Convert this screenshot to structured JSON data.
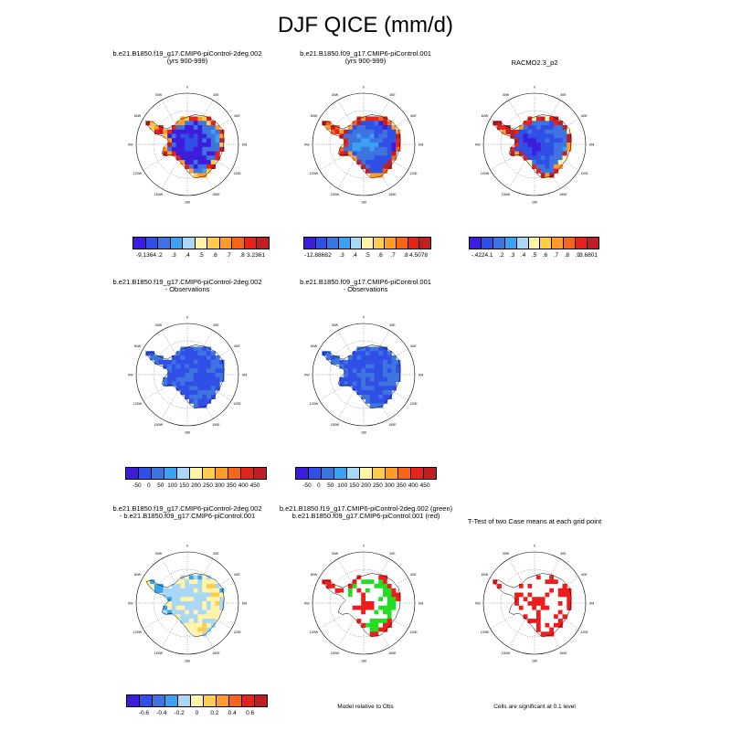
{
  "page": {
    "title": "DJF QICE (mm/d)"
  },
  "palettes": {
    "model": [
      "#3d1ddb",
      "#2f4fe6",
      "#3d74e0",
      "#3aa2f0",
      "#a8d8f6",
      "#fff4a8",
      "#ffcc4d",
      "#ff9b26",
      "#f7651a",
      "#e3241c",
      "#c11d24"
    ],
    "diff": [
      "#3d1ddb",
      "#2f4fe6",
      "#3d74e0",
      "#3aa2f0",
      "#a8d8f6",
      "#fff4a8",
      "#ffcc4d",
      "#ff9b26",
      "#f7651a",
      "#e3241c",
      "#c11d24"
    ]
  },
  "map": {
    "lon_labels": [
      "0",
      "30E",
      "60E",
      "90E",
      "120E",
      "150E",
      "180",
      "150W",
      "120W",
      "90W",
      "60W",
      "30W"
    ]
  },
  "panels": [
    {
      "id": "p1",
      "title_line1": "b.e21.B1850.f19_g17.CMIP6-piControl-2deg.002",
      "title_line2": "(yrs 900-999)",
      "fill_colors": [
        "#2f4fe6",
        "#3d1ddb",
        "#3d74e0",
        "#3aa2f0"
      ],
      "edge_colors": [
        "#e3241c",
        "#ff9b26",
        "#ffcc4d",
        "#c11d24"
      ],
      "ticks": [
        "-9.1364",
        ".2",
        ".3",
        ".4",
        ".5",
        ".6",
        ".7",
        ".8",
        "3.2361"
      ]
    },
    {
      "id": "p2",
      "title_line1": "b.e21.B1850.f09_g17.CMIP6-piControl.001",
      "title_line2": "(yrs 900-999)",
      "fill_colors": [
        "#3aa2f0",
        "#3d74e0",
        "#2f4fe6",
        "#3d1ddb"
      ],
      "edge_colors": [
        "#e3241c",
        "#f7651a",
        "#c11d24",
        "#ff9b26"
      ],
      "ticks": [
        "-12.8868",
        ".2",
        ".3",
        ".4",
        ".5",
        ".6",
        ".7",
        ".8",
        "4.5078"
      ]
    },
    {
      "id": "p3",
      "title_line1": "RACMO2.3_p2",
      "title_line2": "",
      "fill_colors": [
        "#3d1ddb",
        "#2f4fe6",
        "#3d74e0",
        "#3aa2f0"
      ],
      "edge_colors": [
        "#c11d24",
        "#e3241c",
        "#ff9b26",
        "#fff4a8"
      ],
      "ticks": [
        "-.4224",
        ".1",
        ".2",
        ".3",
        ".4",
        ".5",
        ".6",
        ".7",
        ".8",
        ".9",
        "3.6801"
      ]
    },
    {
      "id": "p4",
      "title_line1": "b.e21.B1850.f19_g17.CMIP6-piControl-2deg.002",
      "title_line2": "- Observations",
      "fill_colors": [
        "#3d74e0",
        "#2f4fe6",
        "#3d74e0"
      ],
      "edge_colors": [
        "#3d74e0",
        "#2f4fe6"
      ],
      "ticks": [
        "-50",
        "0",
        "50",
        "100",
        "150",
        "200",
        "250",
        "300",
        "350",
        "400",
        "450"
      ]
    },
    {
      "id": "p5",
      "title_line1": "b.e21.B1850.f09_g17.CMIP6-piControl.001",
      "title_line2": "- Observations",
      "fill_colors": [
        "#3d74e0",
        "#2f4fe6",
        "#3d74e0"
      ],
      "edge_colors": [
        "#3d74e0",
        "#2f4fe6"
      ],
      "ticks": [
        "-50",
        "0",
        "50",
        "100",
        "150",
        "200",
        "250",
        "300",
        "350",
        "400",
        "450"
      ]
    },
    {
      "id": "p6",
      "title_line1": "b.e21.B1850.f19_g17.CMIP6-piControl-2deg.002",
      "title_line2": "- b.e21.B1850.f09_g17.CMIP6-piControl.001",
      "fill_colors": [
        "#fff4a8",
        "#a8d8f6",
        "#fff4a8",
        "#ffcc4d"
      ],
      "edge_colors": [
        "#a8d8f6",
        "#3aa2f0",
        "#fff4a8"
      ],
      "ticks": [
        "-0.6",
        "-0.4",
        "-0.2",
        "0",
        "0.2",
        "0.4",
        "0.6"
      ]
    },
    {
      "id": "p7",
      "title_line1": "b.e21.B1850.f19_g17.CMIP6-piControl-2deg.002 (green)",
      "title_line2": "b.e21.B1850.f09_g17.CMIP6-piControl.001 (red)",
      "fill_colors": [
        "#ee1c1c",
        "#ffffff",
        "#22dd22",
        "#ee1c1c"
      ],
      "edge_colors": [
        "#ee1c1c",
        "#ffffff"
      ],
      "note": "Model relative to Obs"
    },
    {
      "id": "p8",
      "title_line1": "T-Test of two Case means at each grid point",
      "title_line2": "",
      "fill_colors": [
        "#ee1c1c",
        "#ffffff",
        "#ee1c1c"
      ],
      "edge_colors": [
        "#ee1c1c",
        "#ffffff"
      ],
      "note": "Cells are significant at 0.1 level"
    }
  ]
}
